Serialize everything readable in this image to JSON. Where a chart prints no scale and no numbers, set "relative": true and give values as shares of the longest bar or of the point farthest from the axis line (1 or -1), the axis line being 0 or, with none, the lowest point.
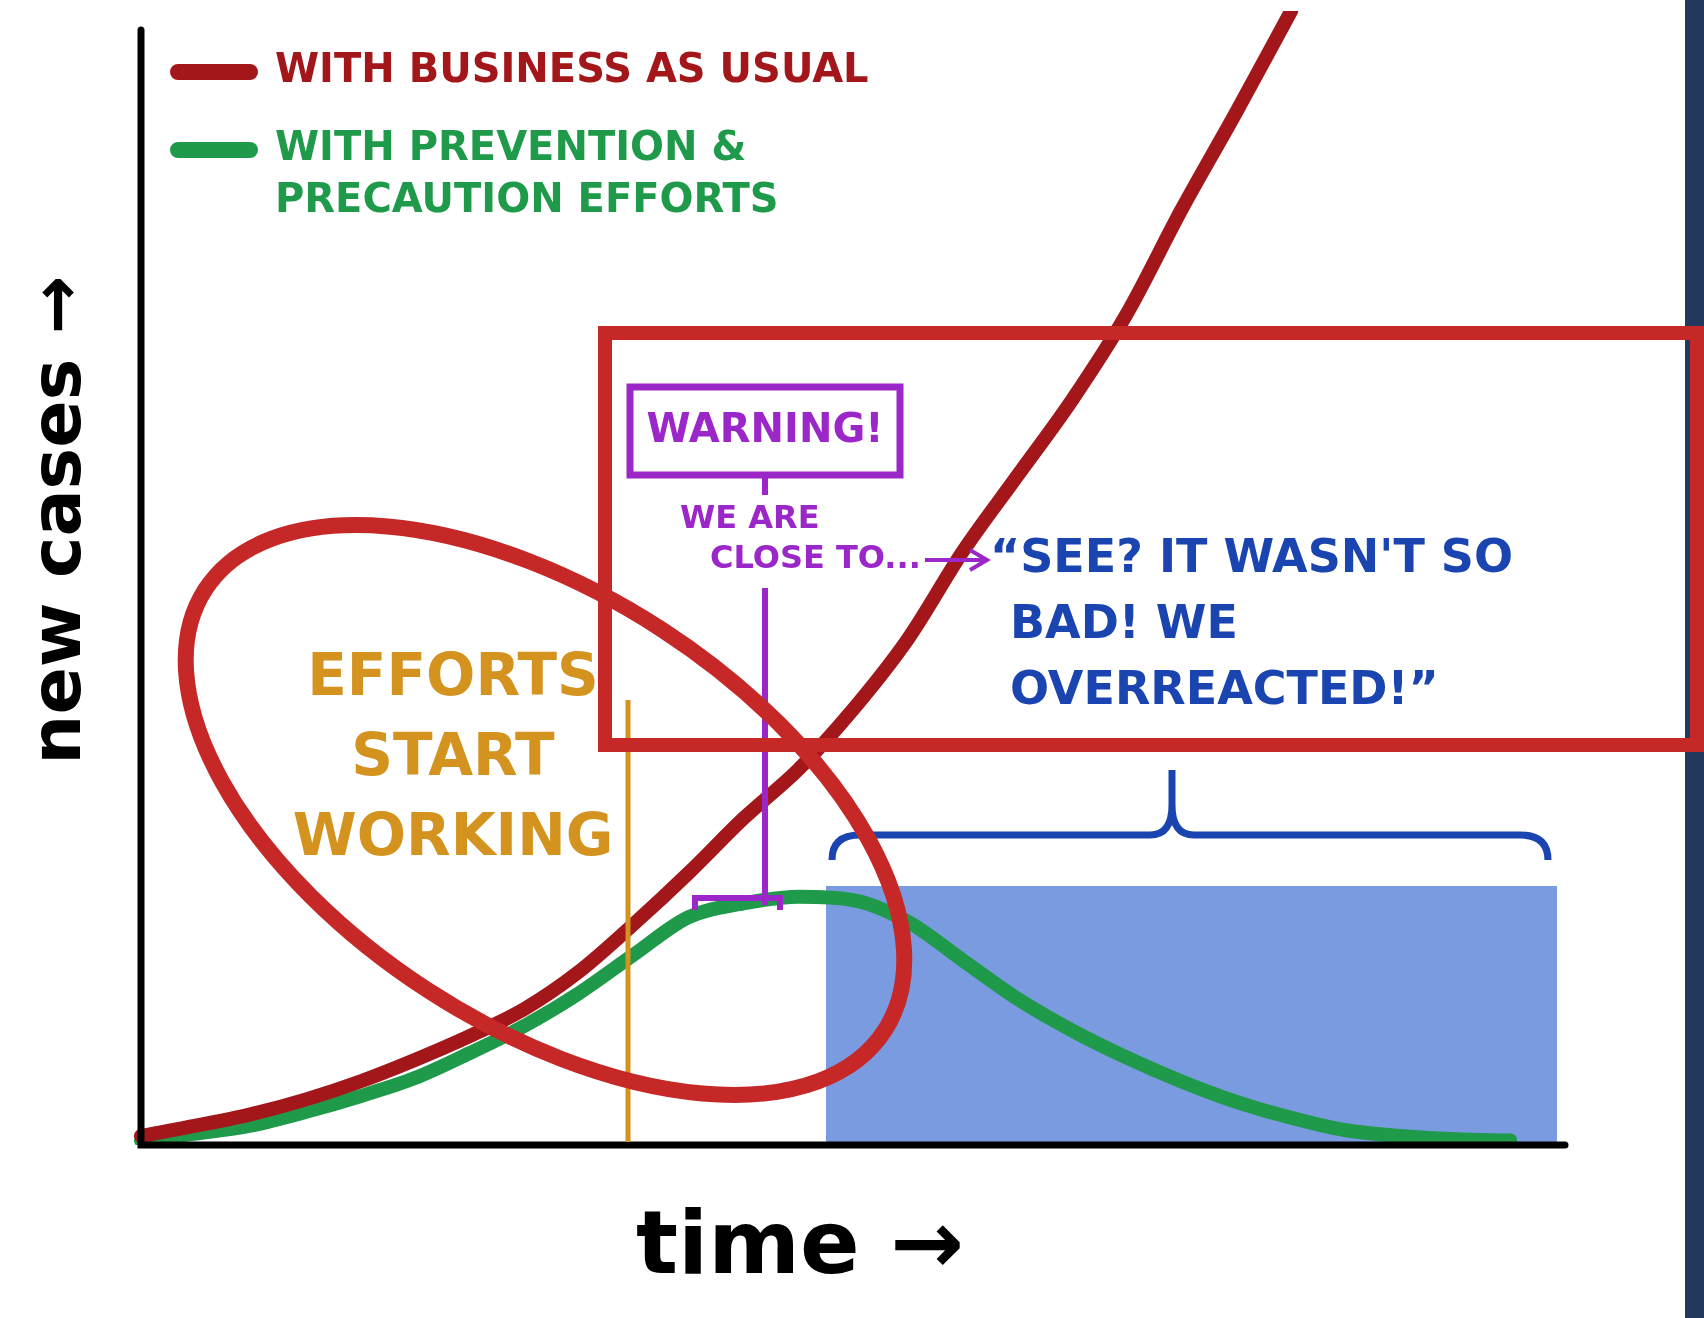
{
  "chart_data": {
    "type": "line",
    "relative": true,
    "xlabel": "time →",
    "ylabel": "new cases →",
    "legend": "top left",
    "categories": [
      null,
      null,
      null,
      null,
      null,
      null,
      null,
      null,
      null,
      null,
      null,
      null,
      null,
      null,
      null,
      null,
      null,
      null,
      null,
      null,
      null,
      null,
      null,
      null,
      null,
      null,
      null
    ],
    "series": [
      {
        "name": "WITH BUSINESS AS USUAL",
        "color": "#a3161a",
        "values": [
          0.008,
          0.017,
          0.027,
          0.04,
          0.056,
          0.075,
          0.096,
          0.12,
          0.153,
          0.195,
          0.24,
          0.288,
          0.331,
          0.384,
          0.446,
          0.523,
          0.59,
          0.657,
          0.733,
          0.825,
          0.911,
          1,
          null,
          null,
          null,
          null,
          null
        ]
      },
      {
        "name": "WITH PREVENTION & PRECAUTION EFFORTS",
        "color": "#1f9a4a",
        "values": [
          0.004,
          0.01,
          0.017,
          0.029,
          0.043,
          0.059,
          0.081,
          0.105,
          0.134,
          0.168,
          0.201,
          0.213,
          0.219,
          0.216,
          0.197,
          0.163,
          0.129,
          0.101,
          0.077,
          0.056,
          0.038,
          0.024,
          0.013,
          0.008,
          0.005,
          0.004,
          null
        ]
      }
    ],
    "annotations": [
      "WARNING!",
      "WE ARE CLOSE TO...",
      "EFFORTS START WORKING",
      "“SEE? IT WASN'T SO BAD! WE OVERREACTED!”"
    ]
  }
}
